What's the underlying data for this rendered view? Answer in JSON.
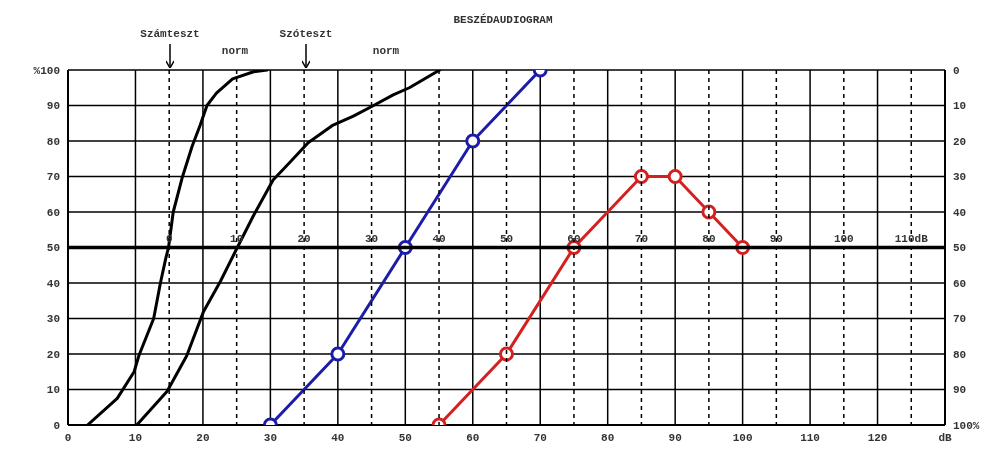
{
  "chart_data": {
    "type": "line",
    "title": "BESZÉDAUDIOGRAM",
    "xlim": [
      0,
      130
    ],
    "xticks": [
      0,
      10,
      20,
      30,
      40,
      50,
      60,
      70,
      80,
      90,
      100,
      110,
      120,
      {
        "value": 130,
        "label": "dB"
      }
    ],
    "x2lim": [
      -15,
      115
    ],
    "x2ticks": [
      0,
      10,
      20,
      30,
      40,
      50,
      60,
      70,
      80,
      90,
      100,
      {
        "value": 110,
        "label": "110dB"
      }
    ],
    "ylim": [
      0,
      100
    ],
    "yticks": [
      0,
      10,
      20,
      30,
      40,
      50,
      60,
      70,
      80,
      90,
      {
        "value": 100,
        "label": "%100"
      }
    ],
    "y2lim": [
      100,
      0
    ],
    "y2ticks": [
      0,
      10,
      20,
      30,
      40,
      50,
      60,
      70,
      80,
      90,
      {
        "value": 100,
        "label": "100%"
      }
    ],
    "grid": true,
    "annotations": [
      "Számteszt",
      "norm",
      "Szóteszt",
      "norm"
    ],
    "series": [
      {
        "color": "#000000",
        "marker": "none",
        "x": [
          2.9,
          7.3,
          9.8,
          10.5,
          12.7,
          13.7,
          14.5,
          14.9,
          15.6,
          16.9,
          18.4,
          19.6,
          20.6,
          22,
          24.4,
          27.5,
          29.5
        ],
        "values": [
          0,
          7.5,
          15,
          19.5,
          30,
          40,
          47,
          50,
          60,
          69.5,
          78.5,
          84.5,
          90,
          93.5,
          97.5,
          99.5,
          100
        ]
      },
      {
        "color": "#000000",
        "marker": "none",
        "x": [
          10.2,
          14.7,
          17.6,
          20.1,
          22.6,
          25.1,
          27.5,
          30.4,
          32.9,
          35.6,
          39.3,
          42.3,
          45.3,
          48.2,
          50.6,
          55.1
        ],
        "values": [
          0,
          9.5,
          19.5,
          32,
          40.5,
          50,
          59,
          69,
          74,
          79.5,
          84.5,
          87,
          90,
          93,
          95,
          100
        ]
      },
      {
        "color": "#1c1ca8",
        "marker": "circle",
        "x": [
          30,
          40,
          50,
          60,
          70
        ],
        "values": [
          0,
          20,
          50,
          80,
          100
        ]
      },
      {
        "color": "#d42020",
        "marker": "circle",
        "x": [
          55,
          65,
          75,
          85,
          90,
          95,
          100
        ],
        "values": [
          0,
          20,
          50,
          70,
          70,
          60,
          50
        ]
      }
    ]
  }
}
